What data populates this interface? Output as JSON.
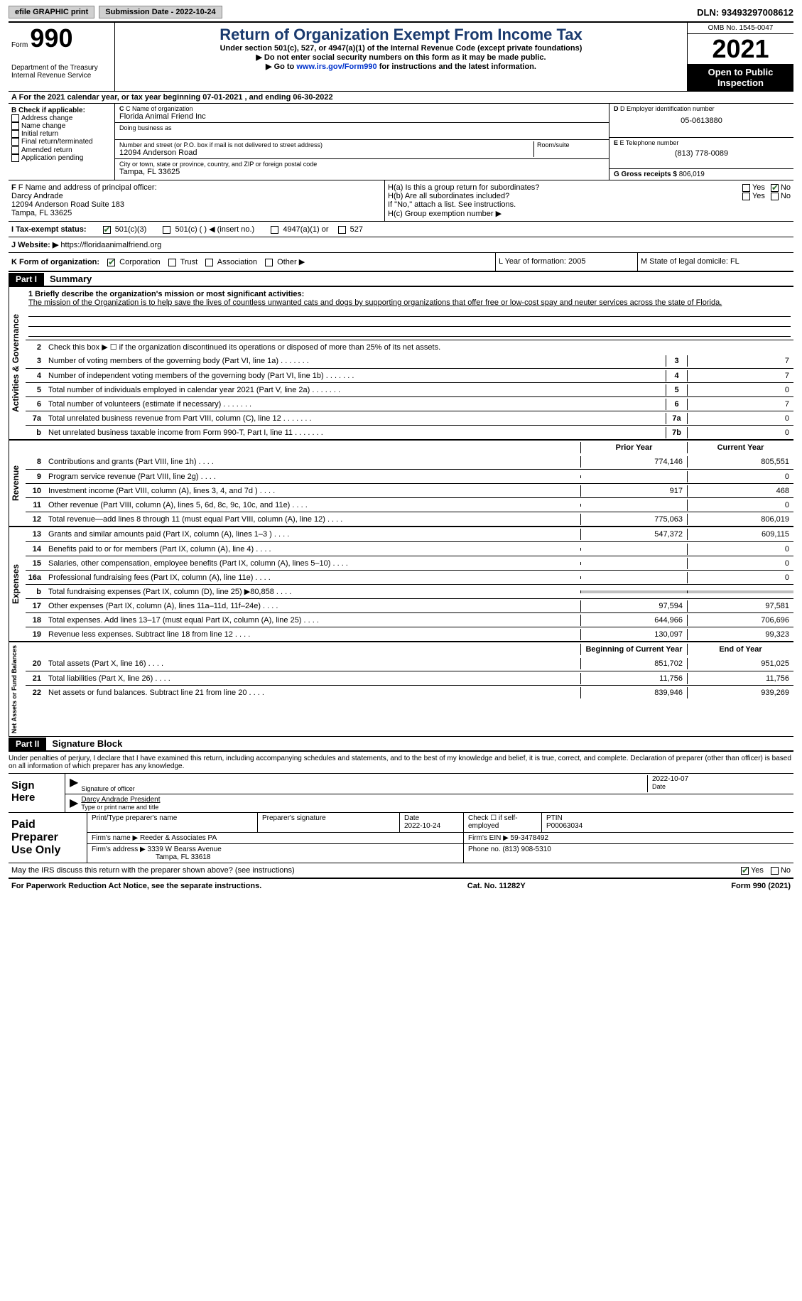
{
  "topbar": {
    "efile": "efile GRAPHIC print",
    "submission": "Submission Date - 2022-10-24",
    "dln": "DLN: 93493297008612"
  },
  "header": {
    "form_word": "Form",
    "form_num": "990",
    "title": "Return of Organization Exempt From Income Tax",
    "sub": "Under section 501(c), 527, or 4947(a)(1) of the Internal Revenue Code (except private foundations)",
    "note1": "▶ Do not enter social security numbers on this form as it may be made public.",
    "note2_pre": "▶ Go to ",
    "note2_link": "www.irs.gov/Form990",
    "note2_post": " for instructions and the latest information.",
    "dept": "Department of the Treasury\nInternal Revenue Service",
    "omb": "OMB No. 1545-0047",
    "year": "2021",
    "inspect": "Open to Public Inspection"
  },
  "row_a": "A For the 2021 calendar year, or tax year beginning 07-01-2021   , and ending 06-30-2022",
  "col_b": {
    "title": "B Check if applicable:",
    "items": [
      "Address change",
      "Name change",
      "Initial return",
      "Final return/terminated",
      "Amended return",
      "Application pending"
    ]
  },
  "col_c": {
    "name_label": "C Name of organization",
    "name": "Florida Animal Friend Inc",
    "dba_label": "Doing business as",
    "addr_label": "Number and street (or P.O. box if mail is not delivered to street address)",
    "room_label": "Room/suite",
    "addr": "12094 Anderson Road",
    "city_label": "City or town, state or province, country, and ZIP or foreign postal code",
    "city": "Tampa, FL  33625"
  },
  "col_d": {
    "ein_label": "D Employer identification number",
    "ein": "05-0613880",
    "tel_label": "E Telephone number",
    "tel": "(813) 778-0089",
    "gross_label": "G Gross receipts $",
    "gross": "806,019"
  },
  "row_f": {
    "label": "F Name and address of principal officer:",
    "name": "Darcy Andrade",
    "addr": "12094 Anderson Road Suite 183",
    "city": "Tampa, FL  33625"
  },
  "row_h": {
    "ha": "H(a)  Is this a group return for subordinates?",
    "hb": "H(b)  Are all subordinates included?",
    "hb_note": "If \"No,\" attach a list. See instructions.",
    "hc": "H(c)  Group exemption number ▶",
    "yes": "Yes",
    "no": "No"
  },
  "row_tax": {
    "label": "I   Tax-exempt status:",
    "o1": "501(c)(3)",
    "o2": "501(c) (  ) ◀ (insert no.)",
    "o3": "4947(a)(1) or",
    "o4": "527"
  },
  "row_web": {
    "label": "J  Website: ▶",
    "url": "https://floridaanimalfriend.org"
  },
  "row_k": {
    "label": "K Form of organization:",
    "o1": "Corporation",
    "o2": "Trust",
    "o3": "Association",
    "o4": "Other ▶"
  },
  "row_l": "L Year of formation: 2005",
  "row_m": "M State of legal domicile: FL",
  "part1": {
    "hdr": "Part I",
    "title": "Summary"
  },
  "mission": {
    "label": "1   Briefly describe the organization's mission or most significant activities:",
    "text": "The mission of the Organization is to help save the lives of countless unwanted cats and dogs by supporting organizations that offer free or low-cost spay and neuter services across the state of Florida."
  },
  "line2": "Check this box ▶ ☐ if the organization discontinued its operations or disposed of more than 25% of its net assets.",
  "governance_lines": [
    {
      "n": "3",
      "d": "Number of voting members of the governing body (Part VI, line 1a)",
      "b": "3",
      "v": "7"
    },
    {
      "n": "4",
      "d": "Number of independent voting members of the governing body (Part VI, line 1b)",
      "b": "4",
      "v": "7"
    },
    {
      "n": "5",
      "d": "Total number of individuals employed in calendar year 2021 (Part V, line 2a)",
      "b": "5",
      "v": "0"
    },
    {
      "n": "6",
      "d": "Total number of volunteers (estimate if necessary)",
      "b": "6",
      "v": "7"
    },
    {
      "n": "7a",
      "d": "Total unrelated business revenue from Part VIII, column (C), line 12",
      "b": "7a",
      "v": "0"
    },
    {
      "n": "b",
      "d": "Net unrelated business taxable income from Form 990-T, Part I, line 11",
      "b": "7b",
      "v": "0"
    }
  ],
  "rev_hdr": {
    "prior": "Prior Year",
    "current": "Current Year"
  },
  "revenue_lines": [
    {
      "n": "8",
      "d": "Contributions and grants (Part VIII, line 1h)",
      "p": "774,146",
      "c": "805,551"
    },
    {
      "n": "9",
      "d": "Program service revenue (Part VIII, line 2g)",
      "p": "",
      "c": "0"
    },
    {
      "n": "10",
      "d": "Investment income (Part VIII, column (A), lines 3, 4, and 7d )",
      "p": "917",
      "c": "468"
    },
    {
      "n": "11",
      "d": "Other revenue (Part VIII, column (A), lines 5, 6d, 8c, 9c, 10c, and 11e)",
      "p": "",
      "c": "0"
    },
    {
      "n": "12",
      "d": "Total revenue—add lines 8 through 11 (must equal Part VIII, column (A), line 12)",
      "p": "775,063",
      "c": "806,019"
    }
  ],
  "expense_lines": [
    {
      "n": "13",
      "d": "Grants and similar amounts paid (Part IX, column (A), lines 1–3 )",
      "p": "547,372",
      "c": "609,115"
    },
    {
      "n": "14",
      "d": "Benefits paid to or for members (Part IX, column (A), line 4)",
      "p": "",
      "c": "0"
    },
    {
      "n": "15",
      "d": "Salaries, other compensation, employee benefits (Part IX, column (A), lines 5–10)",
      "p": "",
      "c": "0"
    },
    {
      "n": "16a",
      "d": "Professional fundraising fees (Part IX, column (A), line 11e)",
      "p": "",
      "c": "0"
    },
    {
      "n": "b",
      "d": "Total fundraising expenses (Part IX, column (D), line 25) ▶80,858",
      "p": "gray",
      "c": "gray"
    },
    {
      "n": "17",
      "d": "Other expenses (Part IX, column (A), lines 11a–11d, 11f–24e)",
      "p": "97,594",
      "c": "97,581"
    },
    {
      "n": "18",
      "d": "Total expenses. Add lines 13–17 (must equal Part IX, column (A), line 25)",
      "p": "644,966",
      "c": "706,696"
    },
    {
      "n": "19",
      "d": "Revenue less expenses. Subtract line 18 from line 12",
      "p": "130,097",
      "c": "99,323"
    }
  ],
  "net_hdr": {
    "begin": "Beginning of Current Year",
    "end": "End of Year"
  },
  "net_lines": [
    {
      "n": "20",
      "d": "Total assets (Part X, line 16)",
      "p": "851,702",
      "c": "951,025"
    },
    {
      "n": "21",
      "d": "Total liabilities (Part X, line 26)",
      "p": "11,756",
      "c": "11,756"
    },
    {
      "n": "22",
      "d": "Net assets or fund balances. Subtract line 21 from line 20",
      "p": "839,946",
      "c": "939,269"
    }
  ],
  "vlabels": {
    "gov": "Activities & Governance",
    "rev": "Revenue",
    "exp": "Expenses",
    "net": "Net Assets or\nFund Balances"
  },
  "part2": {
    "hdr": "Part II",
    "title": "Signature Block"
  },
  "decl": "Under penalties of perjury, I declare that I have examined this return, including accompanying schedules and statements, and to the best of my knowledge and belief, it is true, correct, and complete. Declaration of preparer (other than officer) is based on all information of which preparer has any knowledge.",
  "sign": {
    "here": "Sign\nHere",
    "sig_label": "Signature of officer",
    "date": "2022-10-07",
    "date_label": "Date",
    "name": "Darcy Andrade  President",
    "name_label": "Type or print name and title"
  },
  "prep": {
    "label": "Paid\nPreparer\nUse Only",
    "h1": "Print/Type preparer's name",
    "h2": "Preparer's signature",
    "h3": "Date",
    "h3v": "2022-10-24",
    "h4": "Check ☐ if self-employed",
    "h5": "PTIN",
    "h5v": "P00063034",
    "firm_label": "Firm's name    ▶",
    "firm": "Reeder & Associates PA",
    "ein_label": "Firm's EIN ▶",
    "ein": "59-3478492",
    "addr_label": "Firm's address ▶",
    "addr": "3339 W Bearss Avenue",
    "addr2": "Tampa, FL  33618",
    "phone_label": "Phone no.",
    "phone": "(813) 908-5310"
  },
  "discuss": "May the IRS discuss this return with the preparer shown above? (see instructions)",
  "footer": {
    "left": "For Paperwork Reduction Act Notice, see the separate instructions.",
    "mid": "Cat. No. 11282Y",
    "right": "Form 990 (2021)"
  }
}
